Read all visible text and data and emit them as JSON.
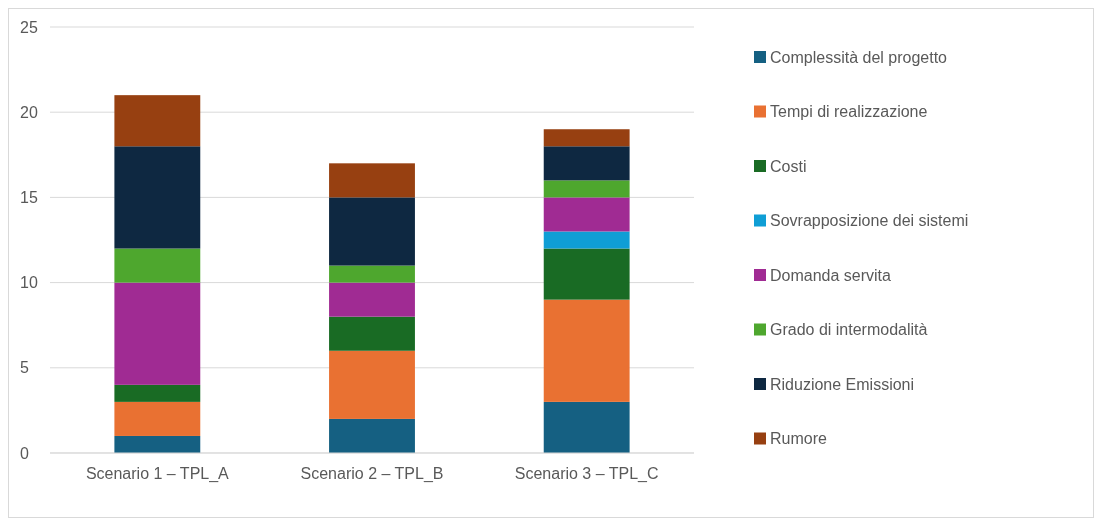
{
  "chart_data": {
    "type": "bar",
    "stacked": true,
    "categories": [
      "Scenario 1 – TPL_A",
      "Scenario 2 – TPL_B",
      "Scenario 3 – TPL_C"
    ],
    "series": [
      {
        "name": "Complessità del progetto",
        "color": "#156082",
        "values": [
          1,
          2,
          3
        ]
      },
      {
        "name": "Tempi di realizzazione",
        "color": "#e97132",
        "values": [
          2,
          4,
          6
        ]
      },
      {
        "name": "Costi",
        "color": "#196b24",
        "values": [
          1,
          2,
          3
        ]
      },
      {
        "name": "Sovrapposizione dei sistemi",
        "color": "#0f9ed5",
        "values": [
          0,
          0,
          1
        ]
      },
      {
        "name": "Domanda servita",
        "color": "#a02b93",
        "values": [
          6,
          2,
          2
        ]
      },
      {
        "name": "Grado di intermodalità",
        "color": "#4ea72e",
        "values": [
          2,
          1,
          1
        ]
      },
      {
        "name": "Riduzione Emissioni",
        "color": "#0e2841",
        "values": [
          6,
          4,
          2
        ]
      },
      {
        "name": "Rumore",
        "color": "#974011",
        "values": [
          3,
          2,
          1
        ]
      }
    ],
    "ylim": [
      0,
      25
    ],
    "yticks": [
      0,
      5,
      10,
      15,
      20,
      25
    ],
    "grid": "y",
    "legend": "right"
  }
}
